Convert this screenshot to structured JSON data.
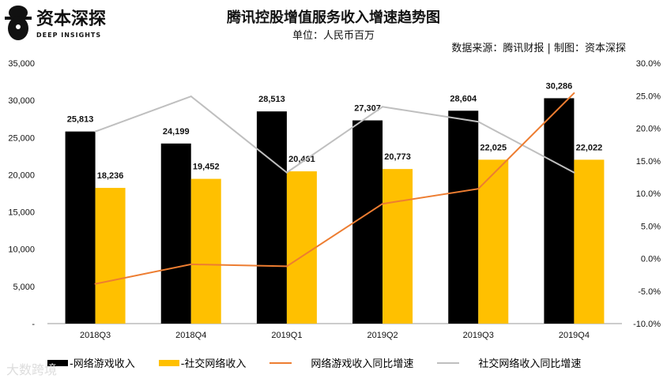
{
  "title": "腾讯控股增值服务收入增速趋势图",
  "unit": "单位：人民币百万",
  "source": "数据来源：腾讯财报  |  制图：资本深探",
  "logo": {
    "name": "资本深探",
    "sub": "DEEP INSIGHTS"
  },
  "watermark": "大数跨境",
  "chart_data": {
    "type": "bar",
    "categories": [
      "2018Q3",
      "2018Q4",
      "2019Q1",
      "2019Q2",
      "2019Q3",
      "2019Q4"
    ],
    "series": [
      {
        "name": "-网络游戏收入",
        "type": "bar",
        "axis": "left",
        "color": "#000000",
        "values": [
          25813,
          24199,
          28513,
          27307,
          28604,
          30286
        ],
        "labels": [
          "25,813",
          "24,199",
          "28,513",
          "27,307",
          "28,604",
          "30,286"
        ]
      },
      {
        "name": "-社交网络收入",
        "type": "bar",
        "axis": "left",
        "color": "#FFC000",
        "values": [
          18236,
          19452,
          20461,
          20773,
          22025,
          22022
        ],
        "labels": [
          "18,236",
          "19,452",
          "20,461",
          "20,773",
          "22,025",
          "22,022"
        ]
      },
      {
        "name": "网络游戏收入同比增速",
        "type": "line",
        "axis": "right",
        "color": "#ED7D31",
        "values": [
          -3.9,
          -0.9,
          -1.2,
          8.4,
          10.7,
          25.4
        ]
      },
      {
        "name": "社交网络收入同比增速",
        "type": "line",
        "axis": "right",
        "color": "#BFBFBF",
        "values": [
          19.5,
          24.9,
          13.2,
          23.3,
          21.0,
          13.2
        ]
      }
    ],
    "ylim": [
      0,
      35000
    ],
    "y2lim": [
      -10,
      30
    ],
    "yticks": [
      "-",
      "5,000",
      "10,000",
      "15,000",
      "20,000",
      "25,000",
      "30,000",
      "35,000"
    ],
    "y2ticks": [
      "-10.0%",
      "-5.0%",
      "0.0%",
      "5.0%",
      "10.0%",
      "15.0%",
      "20.0%",
      "25.0%",
      "30.0%"
    ],
    "grid": false,
    "legend": "bottom"
  }
}
